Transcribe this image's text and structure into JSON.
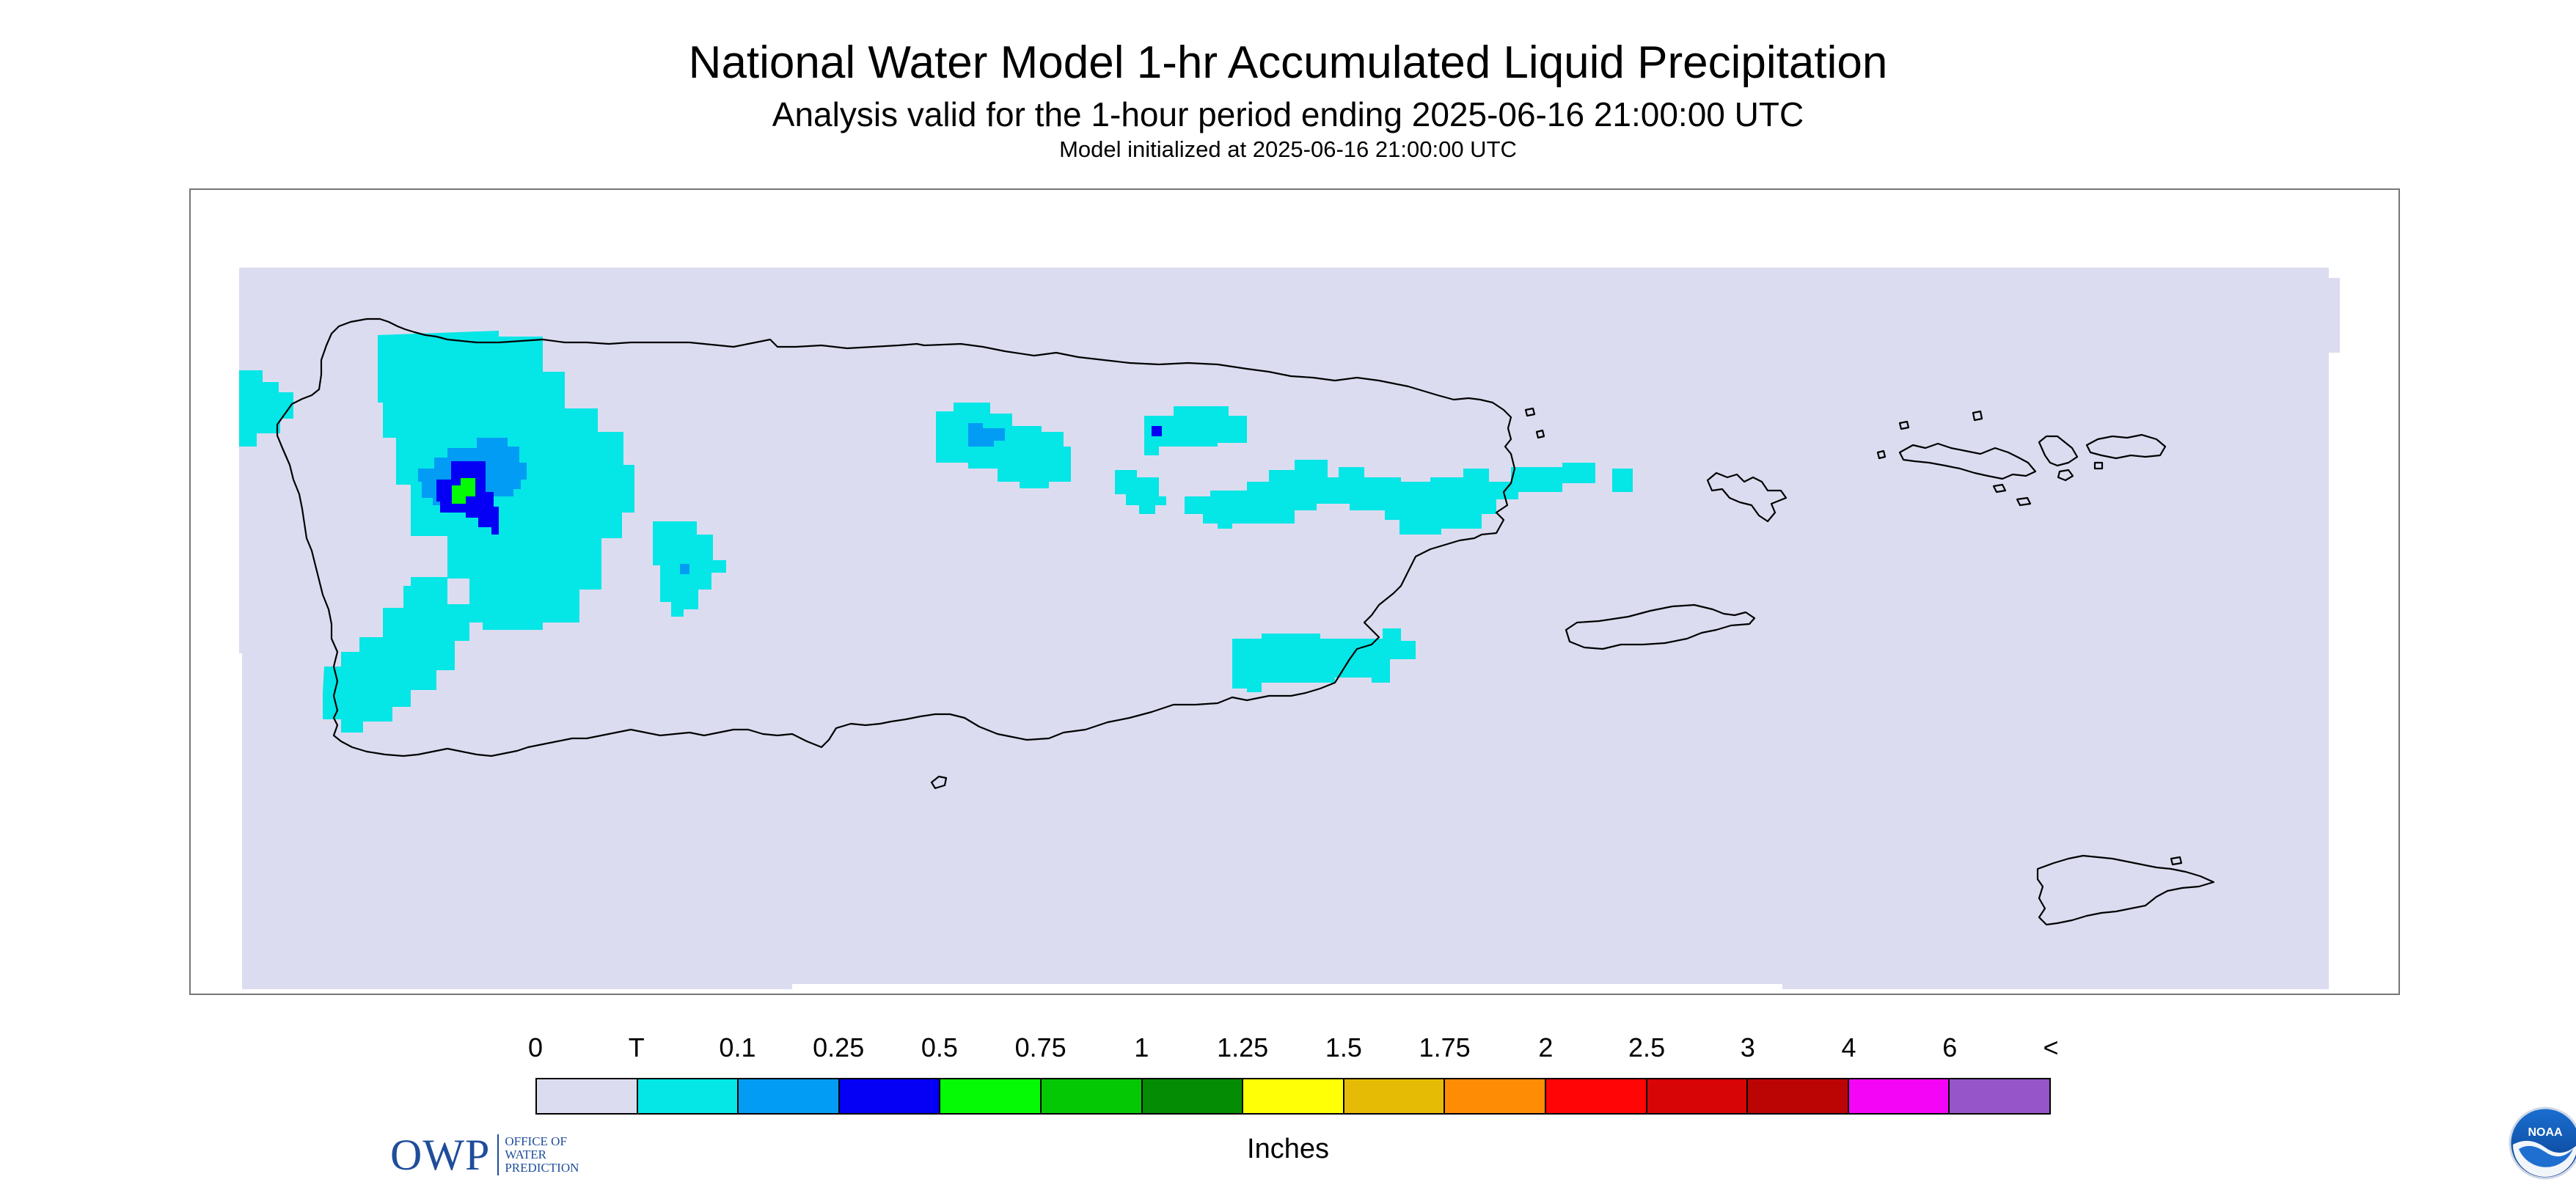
{
  "header": {
    "title": "National Water Model 1-hr Accumulated Liquid Precipitation",
    "subtitle": "Analysis valid for the 1-hour period ending 2025-06-16 21:00:00 UTC",
    "init_line": "Model initialized at 2025-06-16 21:00:00 UTC"
  },
  "map": {
    "background_color": "#dcdcf0",
    "coastline_color": "#000000",
    "precip_colors": {
      "trace": "#05e6e6",
      "light": "#039cf5",
      "moderate": "#0500f5",
      "heavy": "#05fa05"
    }
  },
  "logos": {
    "owp_letters": "OWP",
    "owp_line1": "OFFICE OF",
    "owp_line2": "WATER",
    "owp_line3": "PREDICTION",
    "noaa_text": "NOAA"
  },
  "legend": {
    "labels": [
      "0",
      "T",
      "0.1",
      "0.25",
      "0.5",
      "0.75",
      "1",
      "1.25",
      "1.5",
      "1.75",
      "2",
      "2.5",
      "3",
      "4",
      "6",
      "<"
    ],
    "colors": [
      "#dcdcf0",
      "#05e6e6",
      "#039cf5",
      "#0500f5",
      "#05fa05",
      "#05c805",
      "#058c05",
      "#ffff05",
      "#e6bb05",
      "#ff8c05",
      "#ff0505",
      "#d70505",
      "#bb0505",
      "#f505f5",
      "#9655c8"
    ],
    "units": "Inches"
  }
}
